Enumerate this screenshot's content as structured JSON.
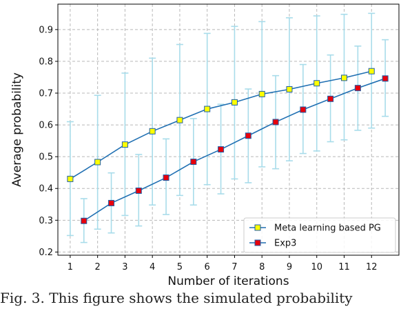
{
  "chart_data": {
    "type": "line",
    "xlabel": "Number of iterations",
    "ylabel": "Average probability",
    "xlim": [
      0.55,
      13.0
    ],
    "ylim": [
      0.19,
      0.98
    ],
    "x_ticks": [
      1,
      2,
      3,
      4,
      5,
      6,
      7,
      8,
      9,
      10,
      11,
      12
    ],
    "y_ticks": [
      0.2,
      0.3,
      0.4,
      0.5,
      0.6,
      0.7,
      0.8,
      0.9
    ],
    "grid": true,
    "grid_style": "dashed",
    "legend_position": "lower-right",
    "series": [
      {
        "name": "Meta learning based PG",
        "line_color": "#1f6fb2",
        "marker_color": "#ffff00",
        "marker_edge": "#1f5ea8",
        "errorbar_color": "#a8dcea",
        "x": [
          1,
          2,
          3,
          4,
          5,
          6,
          7,
          8,
          9,
          10,
          11,
          12
        ],
        "y": [
          0.43,
          0.483,
          0.538,
          0.58,
          0.615,
          0.65,
          0.671,
          0.697,
          0.712,
          0.731,
          0.748,
          0.769
        ],
        "lower": [
          0.252,
          0.272,
          0.315,
          0.348,
          0.378,
          0.412,
          0.43,
          0.468,
          0.487,
          0.518,
          0.553,
          0.59
        ],
        "upper": [
          0.61,
          0.693,
          0.763,
          0.81,
          0.853,
          0.888,
          0.91,
          0.925,
          0.937,
          0.943,
          0.948,
          0.951
        ]
      },
      {
        "name": "Exp3",
        "line_color": "#1f6fb2",
        "marker_color": "#e8000b",
        "marker_edge": "#1f5ea8",
        "errorbar_color": "#a8dcea",
        "x": [
          1.5,
          2.5,
          3.5,
          4.5,
          5.5,
          6.5,
          7.5,
          8.5,
          9.5,
          10.5,
          11.5,
          12.5
        ],
        "y": [
          0.298,
          0.354,
          0.393,
          0.434,
          0.484,
          0.523,
          0.566,
          0.609,
          0.648,
          0.682,
          0.716,
          0.746
        ],
        "lower": [
          0.23,
          0.26,
          0.282,
          0.318,
          0.348,
          0.383,
          0.418,
          0.462,
          0.51,
          0.547,
          0.583,
          0.627
        ],
        "upper": [
          0.368,
          0.449,
          0.507,
          0.556,
          0.62,
          0.665,
          0.713,
          0.755,
          0.79,
          0.82,
          0.848,
          0.868
        ]
      }
    ]
  },
  "caption": "Fig. 3. This figure shows the simulated probability"
}
